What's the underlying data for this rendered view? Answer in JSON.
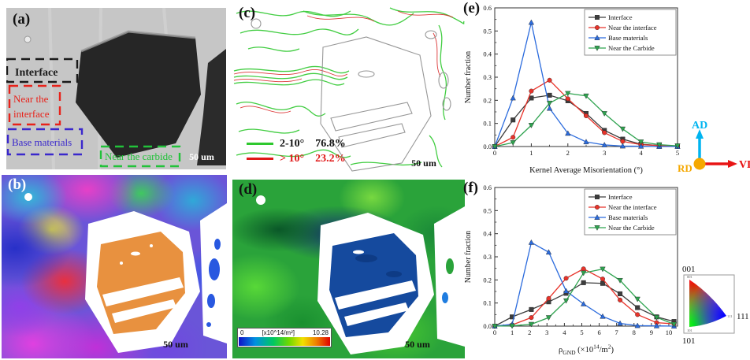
{
  "panels": {
    "a": {
      "label": "(a)",
      "box_interface": {
        "label": "Interface",
        "color": "#1a1a1a"
      },
      "box_near_interface": {
        "line1": "Near the",
        "line2": "interface",
        "color": "#e8221a"
      },
      "box_base": {
        "label": "Base materials",
        "color": "#3a28cc"
      },
      "box_carbide": {
        "label": "Near the carbide",
        "color": "#22c23a"
      },
      "scale_bar": "50 um"
    },
    "b": {
      "label": "(b)",
      "scale_bar": "50 um",
      "carbide_color": "#e8913f"
    },
    "c": {
      "label": "(c)",
      "legend": {
        "row1_range": "2-10°",
        "row1_pct": "76.8%",
        "row1_color": "#2ec82e",
        "row2_range": "> 10°",
        "row2_pct": "23.2%",
        "row2_color": "#e01818"
      },
      "scale_bar": "50 um"
    },
    "d": {
      "label": "(d)",
      "colorbar_min": "0",
      "colorbar_unit": "[x10^14/m²]",
      "colorbar_max": "10.28",
      "scale_bar": "50 um"
    }
  },
  "orientation": {
    "up": "AD",
    "right": "VD",
    "origin": "RD",
    "up_color": "#00b4f0",
    "right_color": "#e81414",
    "origin_color": "#f5a800"
  },
  "ipf": {
    "c001": "001",
    "c101": "101",
    "c111": "111"
  },
  "chart_data": [
    {
      "type": "line",
      "panel_label": "(e)",
      "xlabel": "Kernel Average Misorientation (°)",
      "ylabel": "Number fraction",
      "xlim": [
        0,
        5
      ],
      "ylim": [
        0,
        0.6
      ],
      "xticks": [
        0,
        1,
        2,
        3,
        4,
        5
      ],
      "yticks": [
        0,
        0.1,
        0.2,
        0.3,
        0.4,
        0.5,
        0.6
      ],
      "grid": false,
      "legend_position": "top-right",
      "x": [
        0,
        0.5,
        1,
        1.5,
        2,
        2.5,
        3,
        3.5,
        4,
        4.5,
        5
      ],
      "series": [
        {
          "name": "Interface",
          "color": "#3d3d3d",
          "marker": "square",
          "values": [
            0,
            0.115,
            0.21,
            0.222,
            0.198,
            0.143,
            0.07,
            0.032,
            0.01,
            0.004,
            0.002
          ]
        },
        {
          "name": "Near the interface",
          "color": "#e8332a",
          "marker": "circle",
          "values": [
            0,
            0.04,
            0.24,
            0.287,
            0.207,
            0.133,
            0.06,
            0.022,
            0.008,
            0.004,
            0.002
          ]
        },
        {
          "name": "Base materials",
          "color": "#2b6bdd",
          "marker": "triangle-up",
          "values": [
            0,
            0.21,
            0.537,
            0.165,
            0.057,
            0.02,
            0.007,
            0.002,
            0.001,
            0,
            0
          ]
        },
        {
          "name": "Near the Carbide",
          "color": "#2ea34f",
          "marker": "triangle-down",
          "values": [
            0,
            0.017,
            0.092,
            0.188,
            0.23,
            0.219,
            0.143,
            0.076,
            0.02,
            0.008,
            0.003
          ]
        }
      ]
    },
    {
      "type": "line",
      "panel_label": "(f)",
      "xlabel": "ρGND (×10^14/m²)",
      "xlabel_segments": [
        [
          "ρ",
          "n"
        ],
        [
          "GND",
          "sub"
        ],
        [
          " (×10",
          "n"
        ],
        [
          "14",
          "sup"
        ],
        [
          "/m",
          "n"
        ],
        [
          "2",
          "sup"
        ],
        [
          ")",
          "n"
        ]
      ],
      "ylabel": "Number fraction",
      "xlim": [
        0,
        10.5
      ],
      "ylim": [
        0,
        0.6
      ],
      "xticks": [
        0,
        1,
        2,
        3,
        4,
        5,
        6,
        7,
        8,
        9,
        10
      ],
      "yticks": [
        0,
        0.1,
        0.2,
        0.3,
        0.4,
        0.5,
        0.6
      ],
      "grid": false,
      "legend_position": "top-right",
      "x": [
        0,
        1,
        2.1,
        3.1,
        4.1,
        5.1,
        6.2,
        7.2,
        8.2,
        9.3,
        10.3
      ],
      "series": [
        {
          "name": "Interface",
          "color": "#3d3d3d",
          "marker": "square",
          "values": [
            0,
            0.04,
            0.072,
            0.105,
            0.142,
            0.188,
            0.185,
            0.14,
            0.08,
            0.04,
            0.02
          ]
        },
        {
          "name": "Near the interface",
          "color": "#e8332a",
          "marker": "circle",
          "values": [
            0,
            0.005,
            0.037,
            0.12,
            0.207,
            0.248,
            0.204,
            0.113,
            0.05,
            0.015,
            0.01
          ]
        },
        {
          "name": "Base materials",
          "color": "#2b6bdd",
          "marker": "triangle-up",
          "values": [
            0,
            0.008,
            0.362,
            0.32,
            0.152,
            0.096,
            0.042,
            0.012,
            0.002,
            0.001,
            0
          ]
        },
        {
          "name": "Near the Carbide",
          "color": "#2ea34f",
          "marker": "triangle-down",
          "values": [
            0,
            0.001,
            0.008,
            0.037,
            0.11,
            0.23,
            0.247,
            0.198,
            0.117,
            0.038,
            0.008
          ]
        }
      ]
    }
  ]
}
